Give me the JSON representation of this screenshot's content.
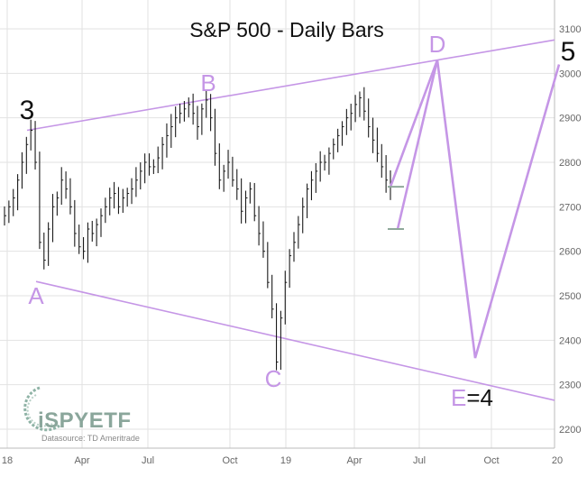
{
  "chart_data": {
    "type": "bar",
    "title": "S&P 500 - Daily Bars",
    "xlabel": "",
    "ylabel": "",
    "ylim": [
      2150,
      3150
    ],
    "grid": true,
    "y_ticks": [
      2200,
      2300,
      2400,
      2500,
      2600,
      2700,
      2800,
      2900,
      3000,
      3100
    ],
    "x_ticks": [
      "18",
      "Apr",
      "Jul",
      "Oct",
      "19",
      "Apr",
      "Jul",
      "Oct",
      "20"
    ],
    "series": [
      {
        "values": [
          2680,
          2700,
          2720,
          2760,
          2800,
          2840,
          2872,
          2800,
          2620,
          2580,
          2650,
          2700,
          2720,
          2760,
          2740,
          2700,
          2640,
          2610,
          2600,
          2650,
          2640,
          2660,
          2680,
          2700,
          2720,
          2730,
          2700,
          2720,
          2730,
          2740,
          2760,
          2780,
          2800,
          2790,
          2790,
          2810,
          2840,
          2860,
          2880,
          2900,
          2910,
          2920,
          2930,
          2910,
          2880,
          2920,
          2940,
          2900,
          2820,
          2760,
          2780,
          2800,
          2760,
          2740,
          2690,
          2720,
          2740,
          2680,
          2640,
          2600,
          2530,
          2470,
          2351,
          2450,
          2530,
          2590,
          2620,
          2660,
          2700,
          2740,
          2760,
          2780,
          2800,
          2800,
          2820,
          2840,
          2860,
          2880,
          2900,
          2910,
          2930,
          2945,
          2915,
          2880,
          2850,
          2820,
          2790,
          2760,
          2745
        ]
      }
    ],
    "wave_points": {
      "3": 2872,
      "A": 2532,
      "B": 2940,
      "C": 2351,
      "D": 3030,
      "E": 2360,
      "5": 3020
    },
    "projection_levels": [
      2745,
      2650
    ],
    "upper_trendline": [
      2872,
      3075
    ],
    "lower_trendline": [
      2532,
      2265
    ],
    "labels": {
      "three": "3",
      "A": "A",
      "B": "B",
      "C": "C",
      "D": "D",
      "E_letter": "E",
      "E_eq": "=4",
      "five": "5"
    },
    "colors": {
      "wave": "#c596e6",
      "bars": "#1a1a1a",
      "grid": "#e2e2e2",
      "axis_text": "#666666",
      "level": "#8fa89a"
    },
    "logo": {
      "brand": "iSPYETF",
      "datasource": "Datasource: TD Ameritrade"
    }
  }
}
